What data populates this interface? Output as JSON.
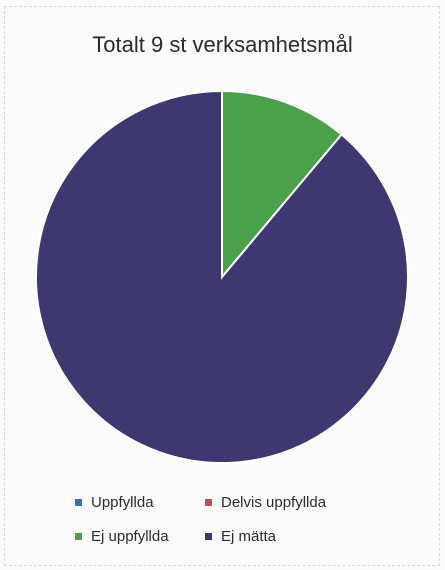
{
  "chart_data": {
    "type": "pie",
    "title": "Totalt 9 st verksamhetsmål",
    "categories": [
      "Uppfyllda",
      "Delvis uppfyllda",
      "Ej uppfyllda",
      "Ej mätta"
    ],
    "values": [
      0,
      0,
      1,
      8
    ],
    "colors": [
      "#2e75b6",
      "#c0504d",
      "#4aa14a",
      "#3f3870"
    ],
    "legend_position": "bottom"
  }
}
